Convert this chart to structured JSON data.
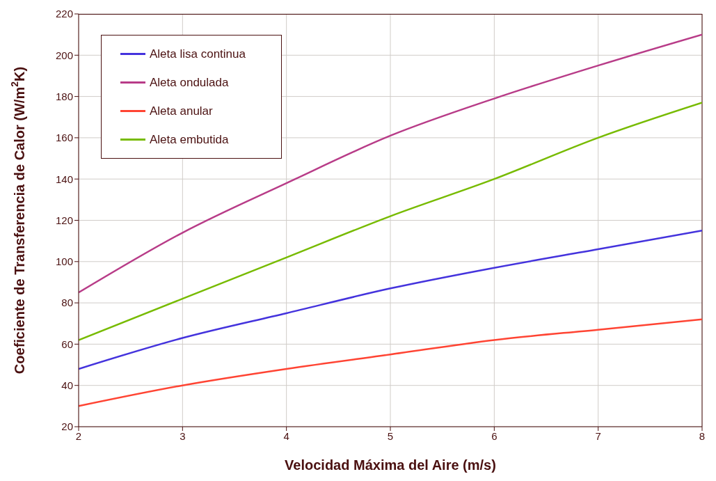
{
  "chart_data": {
    "type": "line",
    "xlabel": "Velocidad Máxima del Aire (m/s)",
    "ylabel": "Coeficiente de Transferencia de Calor (W/m$^{2}$K)",
    "x": [
      2,
      3,
      4,
      5,
      6,
      7,
      8
    ],
    "series": [
      {
        "name": "Aleta lisa continua",
        "color": "#4433dd",
        "values": [
          48,
          63,
          75,
          87,
          97,
          106,
          115
        ]
      },
      {
        "name": "Aleta ondulada",
        "color": "#b83c88",
        "values": [
          85,
          114,
          138,
          161,
          179,
          195,
          210
        ]
      },
      {
        "name": "Aleta anular",
        "color": "#ff4433",
        "values": [
          30,
          40,
          48,
          55,
          62,
          67,
          72
        ]
      },
      {
        "name": "Aleta embutida",
        "color": "#77bb00",
        "values": [
          62,
          82,
          102,
          122,
          140,
          160,
          177
        ]
      }
    ],
    "xlim": [
      2,
      8
    ],
    "xticks": [
      2,
      3,
      4,
      5,
      6,
      7,
      8
    ],
    "ylim": [
      20,
      220
    ],
    "yticks": [
      20,
      40,
      60,
      80,
      100,
      120,
      140,
      160,
      180,
      200,
      220
    ],
    "grid": true,
    "legend": "top left",
    "marker": "none",
    "line_style": "solid"
  }
}
